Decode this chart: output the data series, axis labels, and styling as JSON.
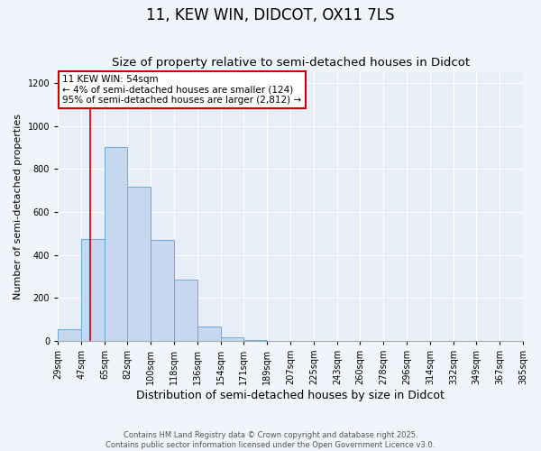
{
  "title": "11, KEW WIN, DIDCOT, OX11 7LS",
  "subtitle": "Size of property relative to semi-detached houses in Didcot",
  "xlabel": "Distribution of semi-detached houses by size in Didcot",
  "ylabel": "Number of semi-detached properties",
  "bin_edges": [
    29,
    47,
    65,
    82,
    100,
    118,
    136,
    154,
    171,
    189,
    207,
    225,
    243,
    260,
    278,
    296,
    314,
    332,
    349,
    367,
    385
  ],
  "bar_heights": [
    55,
    475,
    900,
    715,
    470,
    285,
    65,
    15,
    5,
    0,
    0,
    0,
    0,
    0,
    0,
    0,
    0,
    0,
    0,
    0
  ],
  "bar_color": "#c5d8f0",
  "bar_edge_color": "#6aaad4",
  "background_color": "#f0f4fb",
  "plot_bg_color": "#e8eef8",
  "grid_color": "#ffffff",
  "property_line_x": 54,
  "property_line_color": "#cc0000",
  "annotation_title": "11 KEW WIN: 54sqm",
  "annotation_line1": "← 4% of semi-detached houses are smaller (124)",
  "annotation_line2": "95% of semi-detached houses are larger (2,812) →",
  "annotation_box_facecolor": "#ffffff",
  "annotation_box_edge_color": "#cc0000",
  "ylim": [
    0,
    1250
  ],
  "yticks": [
    0,
    200,
    400,
    600,
    800,
    1000,
    1200
  ],
  "tick_labels": [
    "29sqm",
    "47sqm",
    "65sqm",
    "82sqm",
    "100sqm",
    "118sqm",
    "136sqm",
    "154sqm",
    "171sqm",
    "189sqm",
    "207sqm",
    "225sqm",
    "243sqm",
    "260sqm",
    "278sqm",
    "296sqm",
    "314sqm",
    "332sqm",
    "349sqm",
    "367sqm",
    "385sqm"
  ],
  "footer_line1": "Contains HM Land Registry data © Crown copyright and database right 2025.",
  "footer_line2": "Contains public sector information licensed under the Open Government Licence v3.0.",
  "title_fontsize": 12,
  "subtitle_fontsize": 9.5,
  "xlabel_fontsize": 9,
  "ylabel_fontsize": 8,
  "tick_fontsize": 7,
  "annotation_fontsize": 7.5,
  "footer_fontsize": 6
}
